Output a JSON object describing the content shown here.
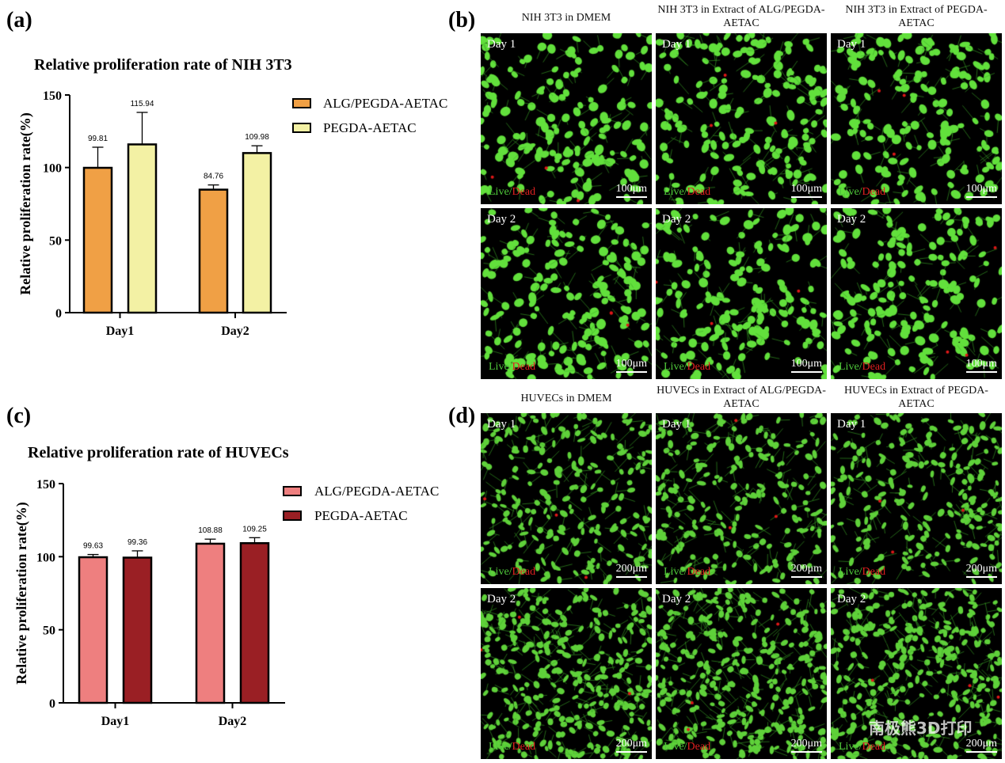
{
  "panels": {
    "a": "(a)",
    "b": "(b)",
    "c": "(c)",
    "d": "(d)"
  },
  "chart_data": [
    {
      "type": "bar",
      "title": "Relative proliferation rate of NIH 3T3",
      "xlabel": "",
      "ylabel": "Relative proliferation rate(%)",
      "ylim": [
        0,
        150
      ],
      "yticks": [
        "0",
        "50",
        "100",
        "150"
      ],
      "categories": [
        "Day1",
        "Day2"
      ],
      "legend_position": "top-right",
      "series": [
        {
          "name": "ALG/PEGDA-AETAC",
          "color": "#f0a045",
          "values": [
            99.81,
            84.76
          ],
          "labels": [
            "99.81",
            "84.76"
          ],
          "error_top": [
            114,
            88
          ]
        },
        {
          "name": "PEGDA-AETAC",
          "color": "#f3f1a4",
          "values": [
            115.94,
            109.98
          ],
          "labels": [
            "115.94",
            "109.98"
          ],
          "error_top": [
            138,
            115
          ]
        }
      ]
    },
    {
      "type": "bar",
      "title": "Relative proliferation rate of HUVECs",
      "xlabel": "",
      "ylabel": "Relative proliferation rate(%)",
      "ylim": [
        0,
        150
      ],
      "yticks": [
        "0",
        "50",
        "100",
        "150"
      ],
      "categories": [
        "Day1",
        "Day2"
      ],
      "legend_position": "top-right",
      "series": [
        {
          "name": "ALG/PEGDA-AETAC",
          "color": "#ee7f7f",
          "values": [
            99.63,
            108.88
          ],
          "labels": [
            "99.63",
            "108.88"
          ],
          "error_top": [
            101.5,
            112
          ]
        },
        {
          "name": "PEGDA-AETAC",
          "color": "#9a1f24",
          "values": [
            99.36,
            109.25
          ],
          "labels": [
            "99.36",
            "109.25"
          ],
          "error_top": [
            104,
            113
          ]
        }
      ]
    }
  ],
  "b": {
    "headers": [
      "NIH 3T3 in DMEM",
      "NIH 3T3 in Extract of ALG/PEGDA-AETAC",
      "NIH 3T3 in Extract of PEGDA-AETAC"
    ],
    "days": [
      "Day 1",
      "Day 2"
    ],
    "scale": "100μm"
  },
  "d": {
    "headers": [
      "HUVECs in DMEM",
      "HUVECs in Extract of ALG/PEGDA-AETAC",
      "HUVECs in Extract of PEGDA-AETAC"
    ],
    "days": [
      "Day 1",
      "Day 2"
    ],
    "scale": "200μm"
  },
  "stain": {
    "live": "Live",
    "sep": "/",
    "dead": "Dead"
  },
  "watermark": "南极熊3D打印"
}
